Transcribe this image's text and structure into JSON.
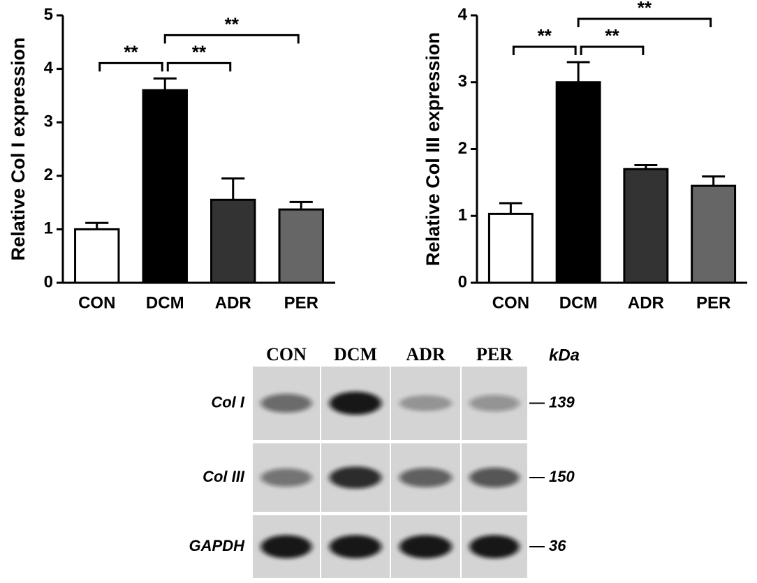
{
  "chart_data": [
    {
      "type": "bar",
      "y_label": "Relative Col I expression",
      "categories": [
        "CON",
        "DCM",
        "ADR",
        "PER"
      ],
      "values": [
        1.0,
        3.6,
        1.55,
        1.37
      ],
      "errors": [
        0.12,
        0.22,
        0.4,
        0.14
      ],
      "colors": [
        "#ffffff",
        "#000000",
        "#333333",
        "#666666"
      ],
      "ylim": [
        0,
        5
      ],
      "yticks": [
        0,
        1,
        2,
        3,
        4,
        5
      ],
      "comparisons": [
        {
          "groups": [
            "CON",
            "DCM"
          ],
          "label": "**"
        },
        {
          "groups": [
            "DCM",
            "ADR"
          ],
          "label": "**"
        },
        {
          "groups": [
            "DCM",
            "PER"
          ],
          "label": "**"
        }
      ]
    },
    {
      "type": "bar",
      "y_label": "Relative Col III expression",
      "categories": [
        "CON",
        "DCM",
        "ADR",
        "PER"
      ],
      "values": [
        1.03,
        3.0,
        1.7,
        1.45
      ],
      "errors": [
        0.16,
        0.3,
        0.06,
        0.14
      ],
      "colors": [
        "#ffffff",
        "#000000",
        "#333333",
        "#666666"
      ],
      "ylim": [
        0,
        4
      ],
      "yticks": [
        0,
        1,
        2,
        3,
        4
      ],
      "comparisons": [
        {
          "groups": [
            "CON",
            "DCM"
          ],
          "label": "**"
        },
        {
          "groups": [
            "DCM",
            "ADR"
          ],
          "label": "**"
        },
        {
          "groups": [
            "DCM",
            "PER"
          ],
          "label": "**"
        }
      ]
    }
  ],
  "blot": {
    "lanes": [
      "CON",
      "DCM",
      "ADR",
      "PER"
    ],
    "unit": "kDa",
    "rows": [
      {
        "label": "Col I",
        "kda": 139,
        "intensity": [
          0.55,
          0.95,
          0.3,
          0.35
        ]
      },
      {
        "label": "Col III",
        "kda": 150,
        "intensity": [
          0.5,
          0.85,
          0.6,
          0.65
        ]
      },
      {
        "label": "GAPDH",
        "kda": 36,
        "intensity": [
          0.95,
          0.95,
          0.95,
          0.95
        ]
      }
    ]
  }
}
